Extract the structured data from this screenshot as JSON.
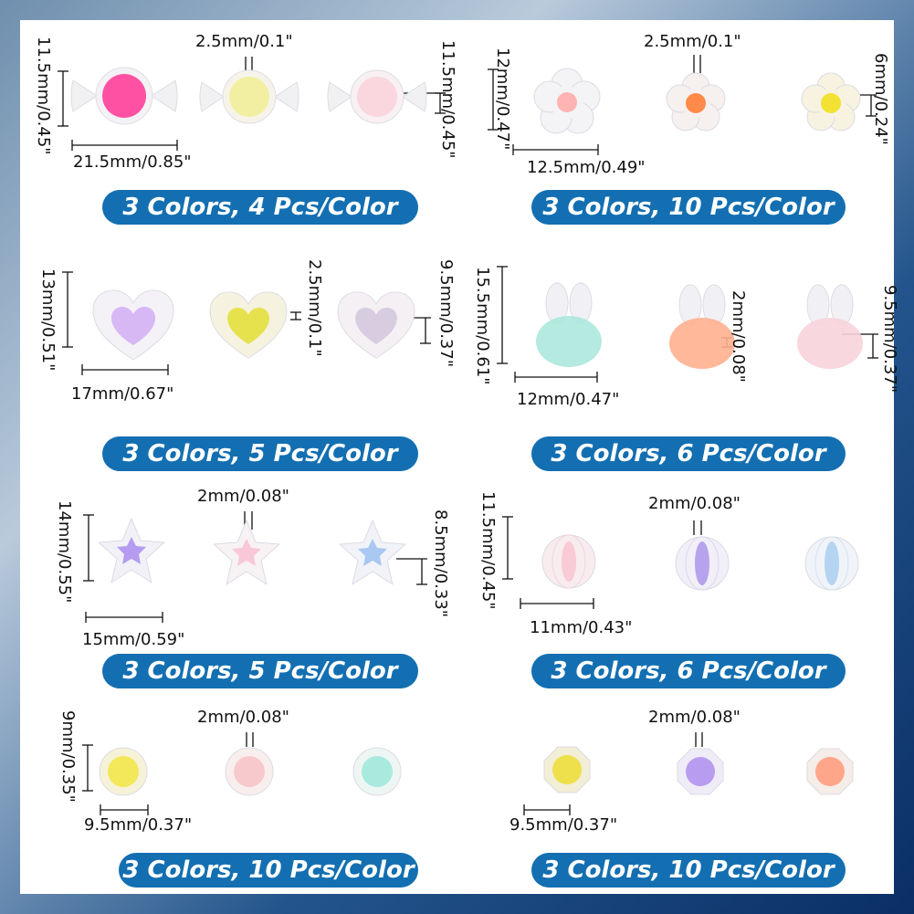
{
  "sections": [
    {
      "id": "candy",
      "banner": "3 Colors, 4 Pcs/Color",
      "labels": {
        "height": "11.5mm/0.45\"",
        "width": "21.5mm/0.85\"",
        "hole": "2.5mm/0.1\"",
        "inner": "11.5mm/0.45\""
      },
      "colors": [
        "#ff3f9a",
        "#f2ee9a",
        "#f9d3dc"
      ]
    },
    {
      "id": "flower",
      "banner": "3 Colors, 10 Pcs/Color",
      "labels": {
        "height": "12mm/0.47\"",
        "width": "12.5mm/0.49\"",
        "hole": "2.5mm/0.1\"",
        "inner": "6mm/0.24\""
      },
      "colors": [
        "#ffb3b3",
        "#ff8a4a",
        "#f2e233"
      ]
    },
    {
      "id": "heart",
      "banner": "3 Colors, 5 Pcs/Color",
      "labels": {
        "height": "13mm/0.51\"",
        "width": "17mm/0.67\"",
        "hole": "2.5mm/0.1\"",
        "inner": "9.5mm/0.37\""
      },
      "colors": [
        "#d7b8f5",
        "#e6e24e",
        "#d8cce0"
      ]
    },
    {
      "id": "bunny",
      "banner": "3 Colors, 6 Pcs/Color",
      "labels": {
        "height": "15.5mm/0.61\"",
        "width": "12mm/0.47\"",
        "hole": "2mm/0.08\"",
        "inner": "9.5mm/0.37\""
      },
      "colors": [
        "#a8e6dc",
        "#ffb08f",
        "#f7d3da"
      ]
    },
    {
      "id": "star",
      "banner": "3 Colors, 5 Pcs/Color",
      "labels": {
        "height": "14mm/0.55\"",
        "width": "15mm/0.59\"",
        "hole": "2mm/0.08\"",
        "inner": "8.5mm/0.33\""
      },
      "colors": [
        "#b59cf0",
        "#f9c8d8",
        "#a9c8f2"
      ]
    },
    {
      "id": "lantern",
      "banner": "3 Colors, 6 Pcs/Color",
      "labels": {
        "height": "11.5mm/0.45\"",
        "width": "11mm/0.43\"",
        "hole": "2mm/0.08\""
      },
      "colors": [
        "#f9cbd6",
        "#b6a3ee",
        "#b5d4f2"
      ]
    },
    {
      "id": "round",
      "banner": "3 Colors, 10 Pcs/Color",
      "labels": {
        "height": "9mm/0.35\"",
        "width": "9.5mm/0.37\"",
        "hole": "2mm/0.08\""
      },
      "colors": [
        "#f3e75a",
        "#f8c9cc",
        "#a9eadf"
      ]
    },
    {
      "id": "faceted",
      "banner": "3 Colors, 10 Pcs/Color",
      "labels": {
        "width": "9.5mm/0.37\"",
        "hole": "2mm/0.08\""
      },
      "colors": [
        "#ede04a",
        "#b79cf0",
        "#ffa68a"
      ]
    }
  ]
}
